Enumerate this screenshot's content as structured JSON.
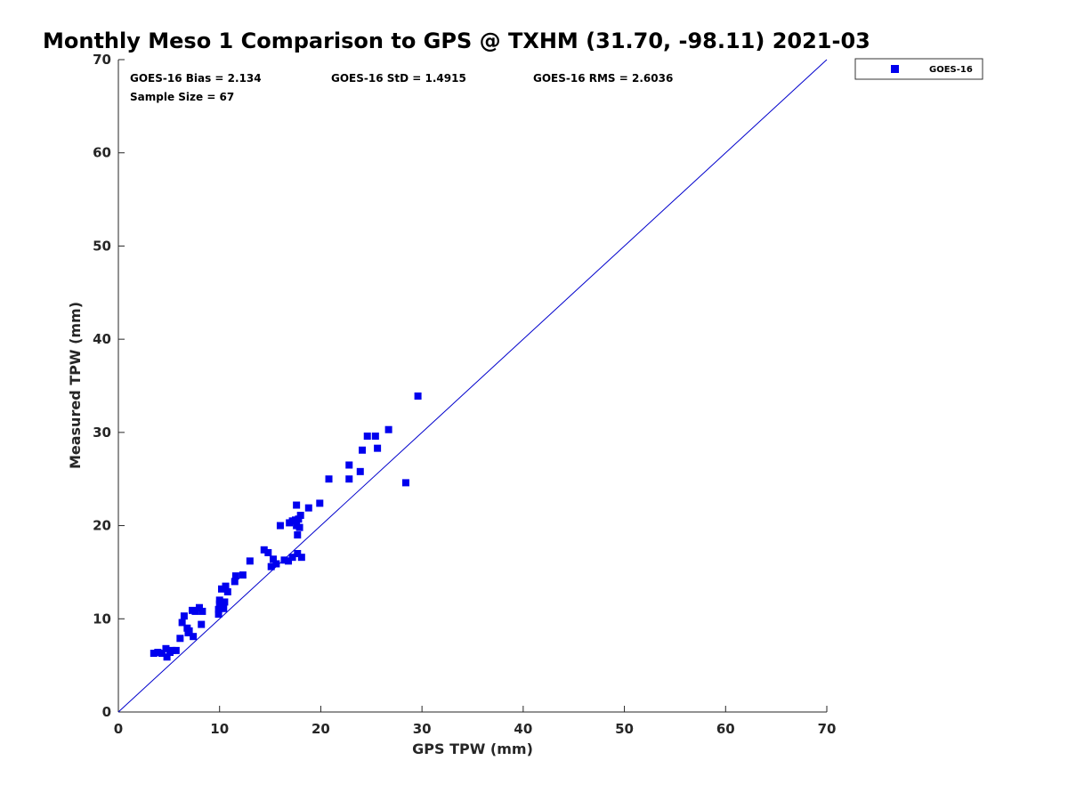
{
  "chart_data": {
    "type": "scatter",
    "title": "Monthly Meso 1 Comparison to GPS @ TXHM (31.70, -98.11) 2021-03",
    "xlabel": "GPS TPW (mm)",
    "ylabel": "Measured TPW (mm)",
    "xlim": [
      0,
      70
    ],
    "ylim": [
      0,
      70
    ],
    "xticks": [
      0,
      10,
      20,
      30,
      40,
      50,
      60,
      70
    ],
    "yticks": [
      0,
      10,
      20,
      30,
      40,
      50,
      60,
      70
    ],
    "grid": false,
    "legend_position": "top-right-outside",
    "reference_line": {
      "x": [
        0,
        70
      ],
      "y": [
        0,
        70
      ],
      "color": "#0000cc"
    },
    "stats": {
      "bias": "GOES-16 Bias = 2.134",
      "std": "GOES-16 StD = 1.4915",
      "rms": "GOES-16 RMS = 2.6036",
      "sample": "Sample Size = 67"
    },
    "series": [
      {
        "name": "GOES-16",
        "color": "#0000ee",
        "marker": "square",
        "x": [
          3.5,
          3.9,
          4.3,
          4.7,
          4.8,
          5.1,
          5.3,
          5.7,
          6.1,
          6.3,
          6.5,
          6.8,
          6.9,
          7.0,
          7.3,
          7.4,
          8.0,
          8.2,
          8.3,
          9.9,
          9.9,
          10.0,
          10.0,
          10.1,
          10.2,
          10.4,
          10.5,
          10.6,
          10.8,
          11.5,
          11.6,
          12.3,
          13.0,
          14.4,
          14.8,
          15.1,
          15.3,
          15.6,
          16.0,
          16.8,
          16.9,
          17.2,
          17.2,
          17.5,
          17.6,
          17.6,
          17.7,
          17.7,
          17.8,
          17.9,
          18.0,
          18.1,
          18.8,
          19.9,
          20.8,
          22.8,
          22.8,
          23.9,
          24.1,
          24.6,
          25.4,
          25.6,
          26.7,
          28.4,
          29.6,
          7.6,
          16.4
        ],
        "y": [
          6.3,
          6.4,
          6.3,
          6.8,
          5.9,
          6.4,
          6.6,
          6.6,
          7.9,
          9.6,
          10.3,
          9.0,
          8.5,
          8.7,
          10.9,
          8.1,
          11.2,
          9.4,
          10.8,
          10.5,
          11.0,
          12.0,
          11.6,
          11.3,
          13.2,
          11.1,
          11.8,
          13.5,
          12.9,
          14.0,
          14.6,
          14.7,
          16.2,
          17.4,
          17.1,
          15.6,
          16.4,
          15.9,
          20.0,
          16.2,
          20.3,
          16.6,
          20.5,
          20.6,
          20.0,
          22.2,
          19.0,
          17.0,
          20.7,
          19.8,
          21.1,
          16.6,
          21.9,
          22.4,
          25.0,
          26.5,
          25.0,
          25.8,
          28.1,
          29.6,
          29.6,
          28.3,
          30.3,
          24.6,
          33.9,
          10.8,
          16.3
        ]
      }
    ]
  }
}
